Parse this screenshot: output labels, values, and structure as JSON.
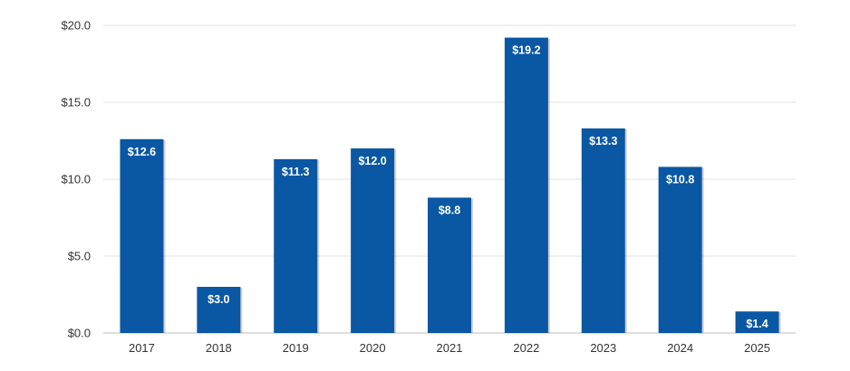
{
  "chart_data": {
    "type": "bar",
    "categories": [
      "2017",
      "2018",
      "2019",
      "2020",
      "2021",
      "2022",
      "2023",
      "2024",
      "2025"
    ],
    "values": [
      12.6,
      3.0,
      11.3,
      12.0,
      8.8,
      19.2,
      13.3,
      10.8,
      1.4
    ],
    "data_labels": [
      "$12.6",
      "$3.0",
      "$11.3",
      "$12.0",
      "$8.8",
      "$19.2",
      "$13.3",
      "$10.8",
      "$1.4"
    ],
    "y_ticks": [
      0,
      5,
      10,
      15,
      20
    ],
    "y_tick_labels": [
      "$0.0",
      "$5.0",
      "$10.0",
      "$15.0",
      "$20.0"
    ],
    "ylim": [
      0,
      20
    ],
    "title": "",
    "xlabel": "",
    "ylabel": "",
    "grid": true,
    "legend": "none",
    "colors": {
      "bar": "#0a57a4",
      "data_label": "#ffffff",
      "grid": "#e3e3e3"
    }
  }
}
